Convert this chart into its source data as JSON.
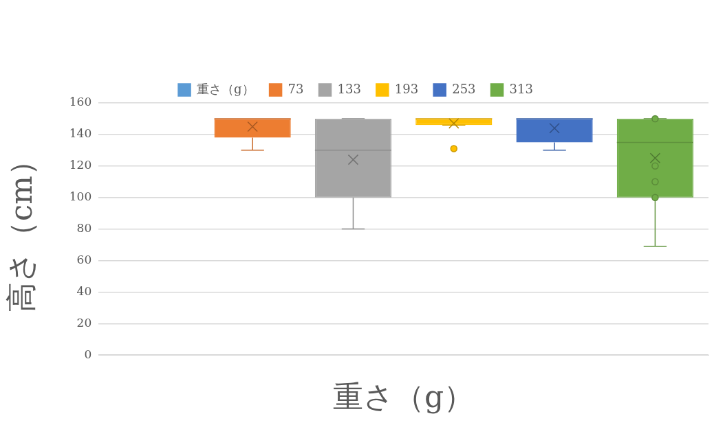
{
  "chart_data": {
    "type": "box",
    "xlabel": "重さ（g）",
    "ylabel": "高さ（cm）",
    "categories": [
      null
    ],
    "series": [
      {
        "name": "重さ（g）",
        "color": "#5b9bd5",
        "boxes": [
          null
        ]
      },
      {
        "name": "73",
        "color": "#ed7d31",
        "boxes": [
          {
            "low": 130,
            "q1": 138,
            "median": 150,
            "q3": 150,
            "high": 150,
            "mean": 145
          }
        ]
      },
      {
        "name": "133",
        "color": "#a5a5a5",
        "boxes": [
          {
            "low": 80,
            "q1": 100,
            "median": 130,
            "q3": 150,
            "high": 150,
            "mean": 124
          }
        ]
      },
      {
        "name": "193",
        "color": "#ffc000",
        "boxes": [
          {
            "low": 146,
            "q1": 146,
            "median": 150,
            "q3": 150,
            "high": 150,
            "mean": 147,
            "outliers": [
              131
            ]
          }
        ]
      },
      {
        "name": "253",
        "color": "#4472c4",
        "boxes": [
          {
            "low": 130,
            "q1": 135,
            "median": 150,
            "q3": 150,
            "high": 150,
            "mean": 144
          }
        ]
      },
      {
        "name": "313",
        "color": "#70ad47",
        "boxes": [
          {
            "low": 69,
            "q1": 100,
            "median": 135,
            "q3": 150,
            "high": 150,
            "mean": 125,
            "outliers": [
              150,
              120,
              110,
              100
            ]
          }
        ]
      }
    ],
    "ylim": [
      0,
      160
    ],
    "yticks": [
      0,
      20,
      40,
      60,
      80,
      100,
      120,
      140,
      160
    ],
    "grid": "y",
    "legend": "top",
    "tick_labels": "y"
  }
}
